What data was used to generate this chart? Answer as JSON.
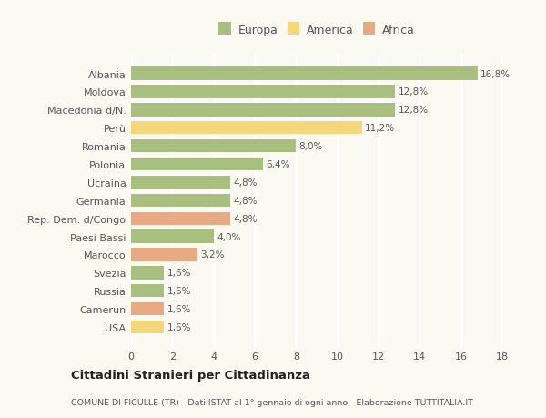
{
  "categories": [
    "Albania",
    "Moldova",
    "Macedonia d/N.",
    "Perù",
    "Romania",
    "Polonia",
    "Ucraina",
    "Germania",
    "Rep. Dem. d/Congo",
    "Paesi Bassi",
    "Marocco",
    "Svezia",
    "Russia",
    "Camerun",
    "USA"
  ],
  "values": [
    16.8,
    12.8,
    12.8,
    11.2,
    8.0,
    6.4,
    4.8,
    4.8,
    4.8,
    4.0,
    3.2,
    1.6,
    1.6,
    1.6,
    1.6
  ],
  "labels": [
    "16,8%",
    "12,8%",
    "12,8%",
    "11,2%",
    "8,0%",
    "6,4%",
    "4,8%",
    "4,8%",
    "4,8%",
    "4,0%",
    "3,2%",
    "1,6%",
    "1,6%",
    "1,6%",
    "1,6%"
  ],
  "colors": [
    "#a8bf7f",
    "#a8bf7f",
    "#a8bf7f",
    "#f5d67a",
    "#a8bf7f",
    "#a8bf7f",
    "#a8bf7f",
    "#a8bf7f",
    "#e8aa82",
    "#a8bf7f",
    "#e8aa82",
    "#a8bf7f",
    "#a8bf7f",
    "#e8aa82",
    "#f5d67a"
  ],
  "legend_labels": [
    "Europa",
    "America",
    "Africa"
  ],
  "legend_colors": [
    "#a8bf7f",
    "#f5d67a",
    "#e8aa82"
  ],
  "title": "Cittadini Stranieri per Cittadinanza",
  "subtitle": "COMUNE DI FICULLE (TR) - Dati ISTAT al 1° gennaio di ogni anno - Elaborazione TUTTITALIA.IT",
  "xlim": [
    0,
    18
  ],
  "xticks": [
    0,
    2,
    4,
    6,
    8,
    10,
    12,
    14,
    16,
    18
  ],
  "bg_color": "#fafaf2",
  "grid_color": "#ffffff",
  "bar_height": 0.72
}
